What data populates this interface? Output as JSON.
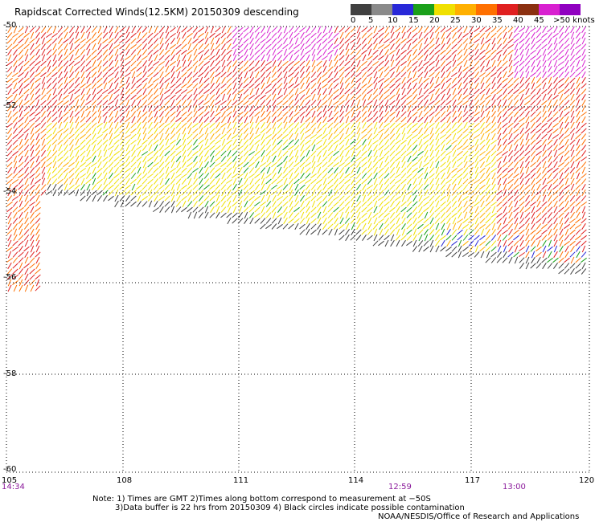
{
  "title": "Rapidscat Corrected Winds(12.5KM) 20150309 descending",
  "legend": {
    "colors": [
      "#404040",
      "#8a8a8a",
      "#2828d8",
      "#1aa01a",
      "#f0e000",
      "#ffb000",
      "#ff7000",
      "#e02020",
      "#8b3010",
      "#d820d0",
      "#9000c0"
    ],
    "labels": [
      "0",
      "5",
      "10",
      "15",
      "20",
      "25",
      "30",
      "35",
      "40",
      "45",
      ">50 knots"
    ]
  },
  "lat_ticks": [
    "-50",
    "-52",
    "-54",
    "-56",
    "-58",
    "-60"
  ],
  "lon_ticks": [
    "105",
    "108",
    "111",
    "114",
    "117",
    "120"
  ],
  "times": [
    "14:34",
    "12:59",
    "13:00"
  ],
  "notes": {
    "line1": "Note: 1) Times are GMT 2)Times along bottom correspond to measurement at −50S",
    "line2": "3)Data buffer is 22 hrs from 20150309 4) Black circles indicate possible contamination",
    "line3": "NOAA/NESDIS/Office of Research and Applications"
  }
}
